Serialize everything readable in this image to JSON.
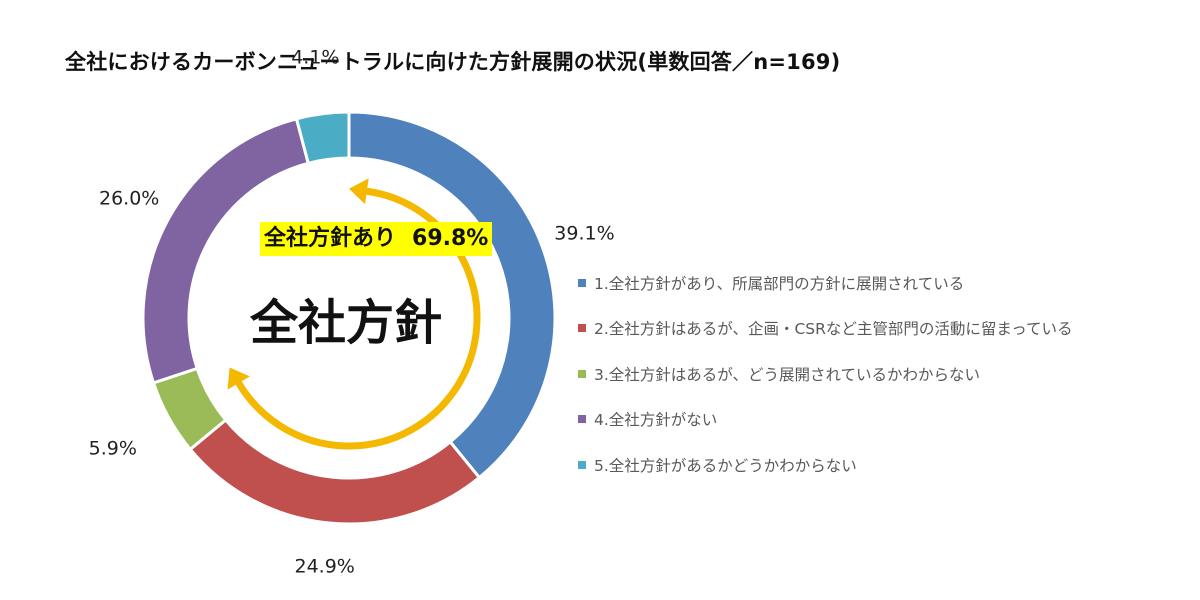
{
  "chart_data": {
    "type": "pie",
    "title": "全社におけるカーボンニュートラルに向けた方針展開の状況(単数回答／n=169)",
    "center_label": "全社方針",
    "annotation": {
      "label": "全社方針あり",
      "value": "69.8%"
    },
    "slices": [
      {
        "label": "1.全社方針があり、所属部門の方針に展開されている",
        "value": 39.1,
        "value_label": "39.1%",
        "color": "#4f81bd"
      },
      {
        "label": "2.全社方針はあるが、企画・CSRなど主管部門の活動に留まっている",
        "value": 24.9,
        "value_label": "24.9%",
        "color": "#c0504d"
      },
      {
        "label": "3.全社方針はあるが、どう展開されているかわからない",
        "value": 5.9,
        "value_label": "5.9%",
        "color": "#9bbb59"
      },
      {
        "label": "4.全社方針がない",
        "value": 26.0,
        "value_label": "26.0%",
        "color": "#8064a2"
      },
      {
        "label": "5.全社方針があるかどうかわからない",
        "value": 4.1,
        "value_label": "4.1%",
        "color": "#4bacc6"
      }
    ],
    "legend_position": "right",
    "arrow_color": "#f5b800"
  }
}
